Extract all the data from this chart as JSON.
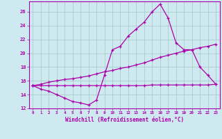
{
  "xlabel": "Windchill (Refroidissement éolien,°C)",
  "xlim": [
    -0.5,
    23.5
  ],
  "ylim": [
    12,
    27.5
  ],
  "xticks": [
    0,
    1,
    2,
    3,
    4,
    5,
    6,
    7,
    8,
    9,
    10,
    11,
    12,
    13,
    14,
    15,
    16,
    17,
    18,
    19,
    20,
    21,
    22,
    23
  ],
  "yticks": [
    12,
    14,
    16,
    18,
    20,
    22,
    24,
    26
  ],
  "bg_color": "#cfe9f0",
  "line_color": "#aa00aa",
  "grid_color": "#aacccc",
  "line1_x": [
    0,
    1,
    2,
    3,
    4,
    5,
    6,
    7,
    8,
    9,
    10,
    11,
    12,
    13,
    14,
    15,
    16,
    17,
    18,
    19,
    20,
    21,
    22,
    23
  ],
  "line1_y": [
    15.3,
    14.8,
    14.5,
    14.0,
    13.5,
    13.0,
    12.8,
    12.5,
    13.2,
    16.8,
    20.5,
    21.0,
    22.5,
    23.5,
    24.5,
    26.0,
    27.1,
    25.1,
    21.5,
    20.5,
    20.5,
    18.0,
    16.8,
    15.5
  ],
  "line2_x": [
    0,
    1,
    2,
    3,
    4,
    5,
    6,
    7,
    8,
    9,
    10,
    11,
    12,
    13,
    14,
    15,
    16,
    17,
    18,
    19,
    20,
    21,
    22,
    23
  ],
  "line2_y": [
    15.3,
    15.5,
    15.8,
    16.0,
    16.2,
    16.3,
    16.5,
    16.7,
    17.0,
    17.3,
    17.5,
    17.8,
    18.0,
    18.3,
    18.6,
    19.0,
    19.4,
    19.7,
    20.0,
    20.3,
    20.5,
    20.8,
    21.0,
    21.3
  ],
  "line3_x": [
    0,
    1,
    2,
    3,
    4,
    5,
    6,
    7,
    8,
    9,
    10,
    11,
    12,
    13,
    14,
    15,
    16,
    17,
    18,
    19,
    20,
    21,
    22,
    23
  ],
  "line3_y": [
    15.3,
    15.3,
    15.3,
    15.3,
    15.3,
    15.3,
    15.3,
    15.3,
    15.3,
    15.3,
    15.3,
    15.3,
    15.3,
    15.3,
    15.3,
    15.4,
    15.4,
    15.4,
    15.4,
    15.4,
    15.4,
    15.4,
    15.4,
    15.5
  ]
}
